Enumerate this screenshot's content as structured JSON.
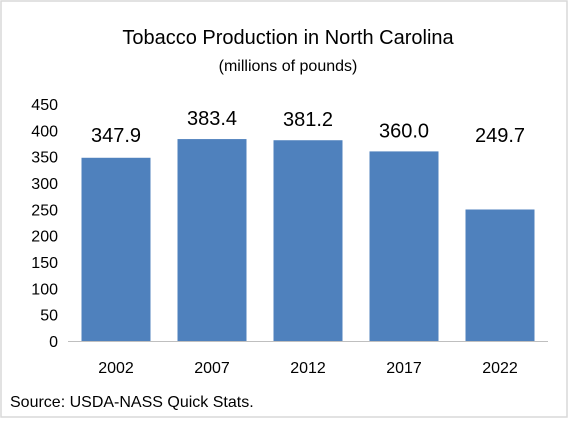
{
  "chart_data": {
    "type": "bar",
    "title": "Tobacco Production in North Carolina",
    "subtitle": "(millions of pounds)",
    "categories": [
      "2002",
      "2007",
      "2012",
      "2017",
      "2022"
    ],
    "values": [
      347.9,
      383.4,
      381.2,
      360.0,
      249.7
    ],
    "value_labels": [
      "347.9",
      "383.4",
      "381.2",
      "360.0",
      "249.7"
    ],
    "ylim": [
      0,
      450
    ],
    "yticks": [
      0,
      50,
      100,
      150,
      200,
      250,
      300,
      350,
      400,
      450
    ],
    "xlabel": "",
    "ylabel": "",
    "grid": false,
    "legend": "none",
    "bar_color": "#4F81BD",
    "frame_border_color": "#D9D9D9",
    "source": "Source: USDA-NASS Quick Stats."
  }
}
